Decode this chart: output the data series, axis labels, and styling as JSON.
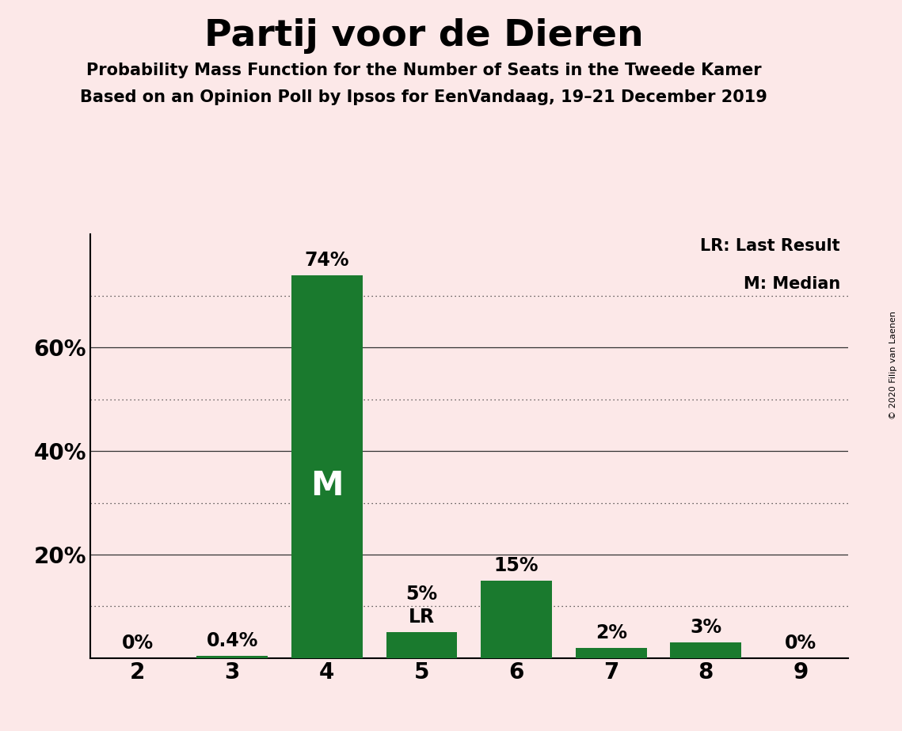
{
  "title": "Partij voor de Dieren",
  "subtitle1": "Probability Mass Function for the Number of Seats in the Tweede Kamer",
  "subtitle2": "Based on an Opinion Poll by Ipsos for EenVandaag, 19–21 December 2019",
  "copyright": "© 2020 Filip van Laenen",
  "categories": [
    2,
    3,
    4,
    5,
    6,
    7,
    8,
    9
  ],
  "values": [
    0.0,
    0.4,
    74.0,
    5.0,
    15.0,
    2.0,
    3.0,
    0.0
  ],
  "labels": [
    "0%",
    "0.4%",
    "74%",
    "5%",
    "15%",
    "2%",
    "3%",
    "0%"
  ],
  "bar_color": "#1a7a2e",
  "background_color": "#fce8e8",
  "ymax": 82,
  "median_bar": 4,
  "median_label": "M",
  "lr_bar": 5,
  "lr_label": "LR",
  "legend_lr": "LR: Last Result",
  "legend_m": "M: Median",
  "grid_color": "#333333",
  "dotted_yticks": [
    10,
    30,
    50,
    70
  ],
  "solid_yticks": [
    20,
    40,
    60
  ],
  "ytick_display": [
    20,
    40,
    60
  ],
  "ytick_labels": [
    "20%",
    "40%",
    "60%"
  ]
}
